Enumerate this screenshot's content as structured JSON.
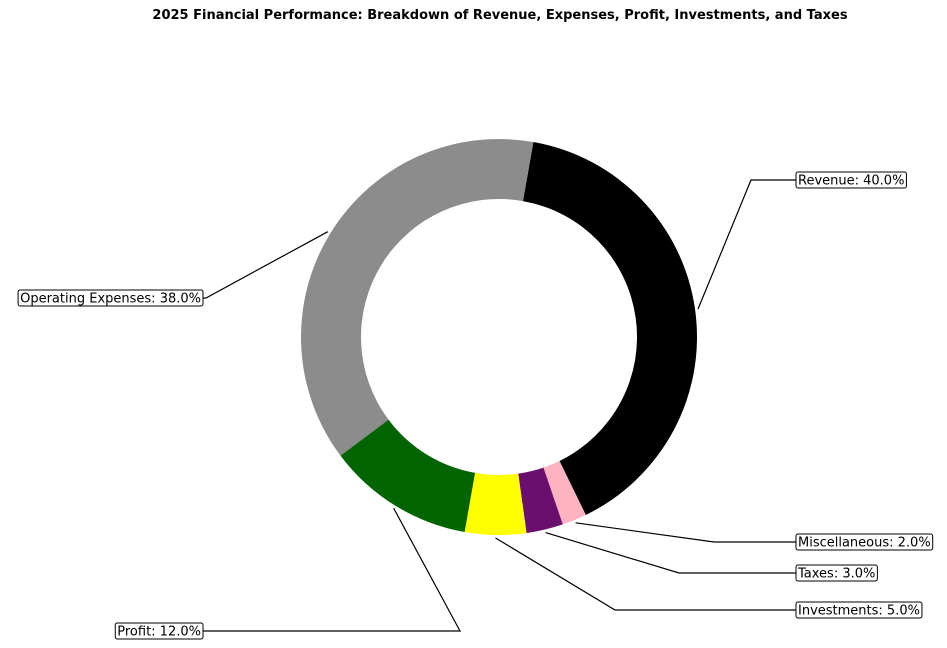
{
  "chart_data": {
    "type": "pie",
    "variant": "donut",
    "title": "2025 Financial Performance: Breakdown of Revenue, Expenses, Profit, Investments, and Taxes",
    "start_angle_deg": 80,
    "direction": "clockwise",
    "slices": [
      {
        "name": "Revenue",
        "value": 40.0,
        "label": "Revenue: 40.0%",
        "color": "#000000"
      },
      {
        "name": "Miscellaneous",
        "value": 2.0,
        "label": "Miscellaneous: 2.0%",
        "color": "#ffb3c1"
      },
      {
        "name": "Taxes",
        "value": 3.0,
        "label": "Taxes: 3.0%",
        "color": "#6a0f6e"
      },
      {
        "name": "Investments",
        "value": 5.0,
        "label": "Investments: 5.0%",
        "color": "#ffff00"
      },
      {
        "name": "Profit",
        "value": 12.0,
        "label": "Profit: 12.0%",
        "color": "#006400"
      },
      {
        "name": "Operating Expenses",
        "value": 38.0,
        "label": "Operating Expenses: 38.0%",
        "color": "#8c8c8c"
      }
    ]
  }
}
